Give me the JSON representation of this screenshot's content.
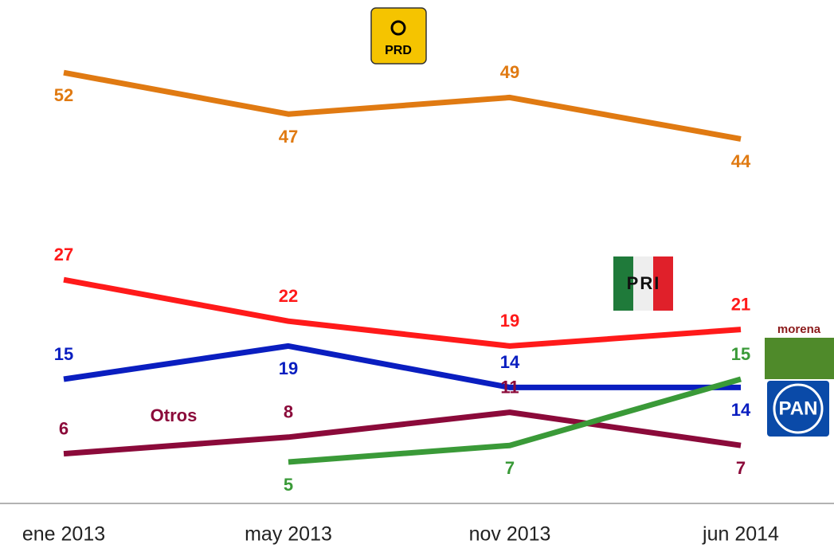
{
  "chart_data": {
    "type": "line",
    "categories": [
      "ene 2013",
      "may 2013",
      "nov 2013",
      "jun 2014"
    ],
    "series": [
      {
        "name": "PRD",
        "color": "#e07a12",
        "values": [
          52,
          47,
          49,
          44
        ]
      },
      {
        "name": "PRI",
        "color": "#ff1a1a",
        "values": [
          27,
          22,
          19,
          21
        ]
      },
      {
        "name": "PAN",
        "color": "#0a1ec0",
        "values": [
          15,
          19,
          14,
          14
        ]
      },
      {
        "name": "Otros",
        "color": "#8b0a3a",
        "values": [
          6,
          8,
          11,
          7
        ]
      },
      {
        "name": "morena",
        "color": "#3a9a38",
        "values": [
          null,
          5,
          7,
          15
        ]
      }
    ],
    "ylim": [
      0,
      60
    ]
  }
}
